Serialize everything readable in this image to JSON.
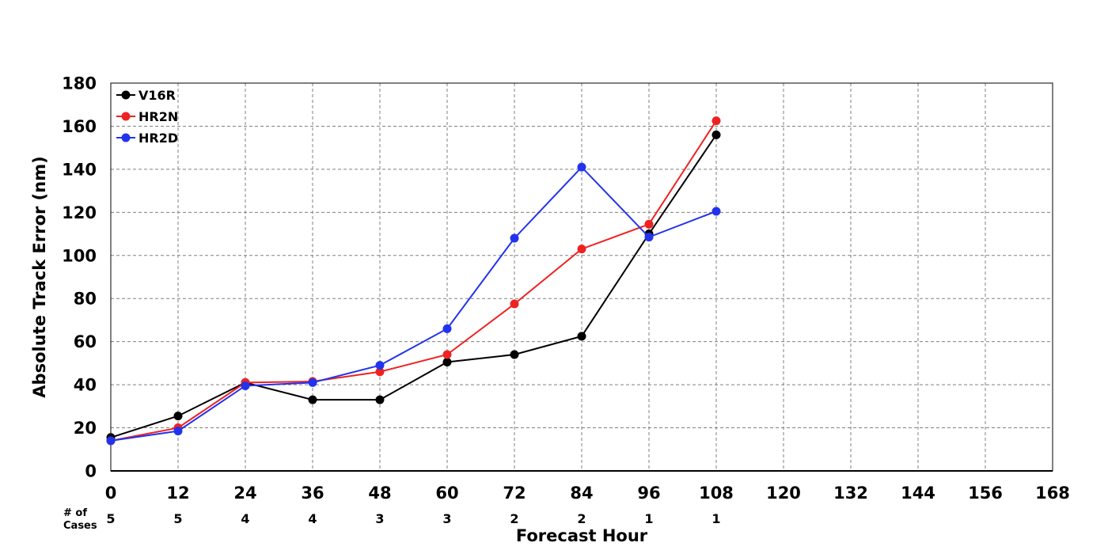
{
  "chart_data": {
    "type": "line",
    "title": "",
    "xlabel": "Forecast Hour",
    "ylabel": "Absolute Track Error (nm)",
    "x": [
      0,
      12,
      24,
      36,
      48,
      60,
      72,
      84,
      96,
      108
    ],
    "xlim": [
      0,
      168
    ],
    "ylim": [
      0,
      180
    ],
    "x_ticks": [
      "0",
      "12",
      "24",
      "36",
      "48",
      "60",
      "72",
      "84",
      "96",
      "108",
      "120",
      "132",
      "144",
      "156",
      "168"
    ],
    "y_ticks": [
      "0",
      "20",
      "40",
      "60",
      "80",
      "100",
      "120",
      "140",
      "160",
      "180"
    ],
    "grid": true,
    "grid_style": "dashed",
    "legend_position": "top-left",
    "series": [
      {
        "name": "V16R",
        "color": "#000000",
        "values": [
          15.5,
          25.5,
          41,
          33,
          33,
          50.5,
          54,
          62.5,
          110,
          156
        ]
      },
      {
        "name": "HR2N",
        "color": "#ee2222",
        "values": [
          14,
          20,
          41,
          41.5,
          46,
          54,
          77.5,
          103,
          114.5,
          162.5
        ]
      },
      {
        "name": "HR2D",
        "color": "#2233ee",
        "values": [
          14,
          18.5,
          39.5,
          41,
          49,
          66,
          108,
          141,
          108.5,
          120.5
        ]
      }
    ],
    "cases": {
      "label_line1": "# of",
      "label_line2": "Cases",
      "values": [
        "5",
        "5",
        "4",
        "4",
        "3",
        "3",
        "2",
        "2",
        "1",
        "1"
      ]
    }
  }
}
